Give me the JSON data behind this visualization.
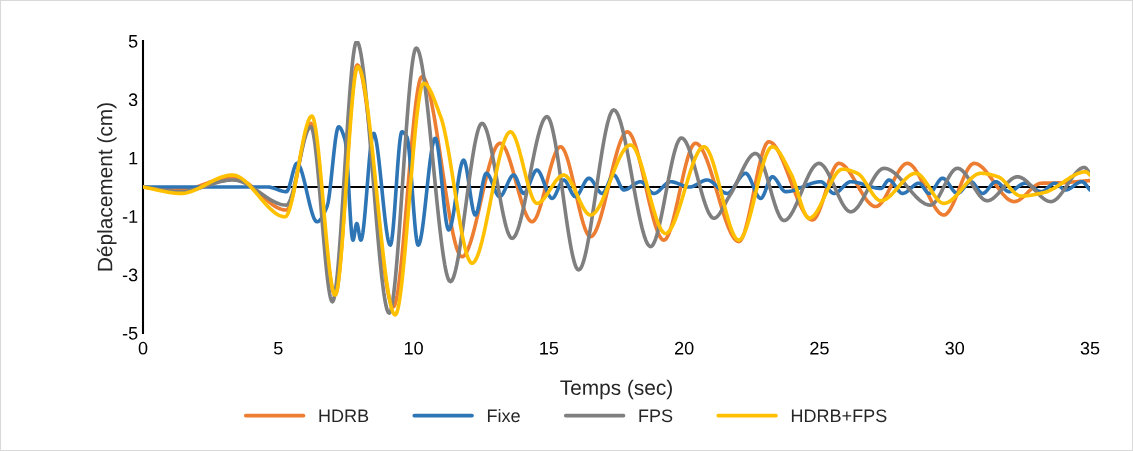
{
  "chart_data": {
    "type": "line",
    "xlabel": "Temps (sec)",
    "ylabel": "Déplacement (cm)",
    "xlim": [
      0,
      35
    ],
    "xticks": [
      0,
      5,
      10,
      15,
      20,
      25,
      30,
      35
    ],
    "ylim": [
      -5,
      5
    ],
    "yticks": [
      -5,
      -3,
      -1,
      1,
      3,
      5
    ],
    "grid": false,
    "legend": "bottom",
    "marker": "none",
    "line_style": "solid",
    "series": [
      {
        "name": "HDRB",
        "color": "#ed7d31",
        "x": [
          0,
          1.4,
          3.3,
          5.3,
          6.2,
          7.1,
          7.92,
          9.25,
          10.31,
          11.79,
          13.2,
          14.38,
          15.43,
          16.54,
          17.9,
          19.25,
          20.42,
          22.02,
          23.13,
          24.74,
          25.72,
          27.08,
          28.25,
          29.6,
          30.72,
          32.2,
          33.2,
          33.8,
          35
        ],
        "values": [
          0,
          -0.1,
          0.35,
          -0.79,
          2.18,
          -3.7,
          4.18,
          -4.1,
          3.78,
          -2.39,
          1.5,
          -1.19,
          1.38,
          -1.7,
          1.89,
          -1.82,
          1.5,
          -1.87,
          1.55,
          -1.13,
          0.81,
          -0.67,
          0.81,
          -0.96,
          0.81,
          -0.5,
          0.13,
          0.14,
          0.22
        ]
      },
      {
        "name": "Fixe",
        "color": "#2e75b6",
        "x": [
          0,
          4.6,
          5.3,
          5.69,
          6.43,
          6.8,
          7.23,
          7.47,
          7.76,
          7.9,
          8.05,
          8.52,
          9.14,
          9.57,
          9.75,
          10.17,
          10.8,
          11.3,
          11.85,
          12.28,
          12.69,
          13.18,
          13.7,
          14.07,
          14.56,
          15.12,
          15.55,
          15.98,
          16.48,
          16.97,
          17.4,
          17.77,
          18.39,
          18.88,
          19.5,
          20.2,
          20.85,
          21.59,
          22.27,
          22.83,
          23.26,
          23.75,
          25.05,
          25.54,
          26.16,
          27.27,
          27.57,
          28.07,
          28.68,
          29.05,
          29.55,
          30.1,
          30.6,
          31.03,
          31.52,
          32.01,
          32.6,
          33.2,
          33.7,
          34.1,
          34.7,
          35
        ],
        "values": [
          0,
          0,
          -0.16,
          0.81,
          -1.19,
          -0.67,
          2.06,
          1.6,
          -1.82,
          -1.25,
          -1.82,
          1.84,
          -1.99,
          1.89,
          1.72,
          -1.99,
          1.67,
          -1.47,
          0.92,
          -0.96,
          0.47,
          -0.33,
          0.41,
          -0.22,
          0.58,
          -0.39,
          0.24,
          -0.33,
          0.3,
          -0.22,
          0.41,
          -0.1,
          0.18,
          -0.22,
          0.18,
          0.0,
          0.24,
          -0.22,
          0.47,
          -0.39,
          0.35,
          -0.16,
          0.18,
          -0.22,
          0.18,
          -0.05,
          0.24,
          -0.22,
          0.13,
          -0.22,
          0.3,
          -0.22,
          0.18,
          -0.22,
          0.18,
          -0.16,
          0.13,
          -0.16,
          0.13,
          -0.1,
          0.18,
          -0.1
        ]
      },
      {
        "name": "FPS",
        "color": "#7f7f7f",
        "x": [
          0,
          1.37,
          3.33,
          5.3,
          6.2,
          7.0,
          7.9,
          9.1,
          10.1,
          11.36,
          12.53,
          13.64,
          14.93,
          16.1,
          17.4,
          18.76,
          19.9,
          21.1,
          21.7,
          22.64,
          23.69,
          24.98,
          26.16,
          27.39,
          29.1,
          30.1,
          31.2,
          32.32,
          33.55,
          34.79,
          35
        ],
        "values": [
          0,
          -0.16,
          0.24,
          -0.62,
          2.06,
          -3.93,
          4.98,
          -4.32,
          4.76,
          -3.24,
          2.18,
          -1.76,
          2.41,
          -2.84,
          2.64,
          -2.04,
          1.68,
          -1.07,
          -0.27,
          1.15,
          -1.15,
          0.81,
          -0.85,
          0.64,
          -0.62,
          0.64,
          -0.47,
          0.35,
          -0.5,
          0.67,
          0.47
        ]
      },
      {
        "name": "HDRB+FPS",
        "color": "#ffc000",
        "x": [
          0,
          1.4,
          3.3,
          5.25,
          6.24,
          7.1,
          7.94,
          9.32,
          10.37,
          11.0,
          12.16,
          13.58,
          14.56,
          15.55,
          16.54,
          18.02,
          19.31,
          20.73,
          22.02,
          23.26,
          23.94,
          24.62,
          25.85,
          26.4,
          27.27,
          28.56,
          29.6,
          30.97,
          31.6,
          32.45,
          33.3,
          34.85,
          35
        ],
        "values": [
          0,
          -0.22,
          0.41,
          -1.02,
          2.43,
          -3.7,
          4.12,
          -4.38,
          3.55,
          2.41,
          -2.61,
          1.89,
          -0.56,
          0.41,
          -0.96,
          1.44,
          -1.59,
          1.38,
          -1.82,
          1.38,
          0.47,
          -1.07,
          0.61,
          0.47,
          -0.47,
          0.47,
          -0.56,
          0.47,
          0.35,
          -0.31,
          -0.19,
          0.52,
          0.41
        ]
      }
    ]
  }
}
